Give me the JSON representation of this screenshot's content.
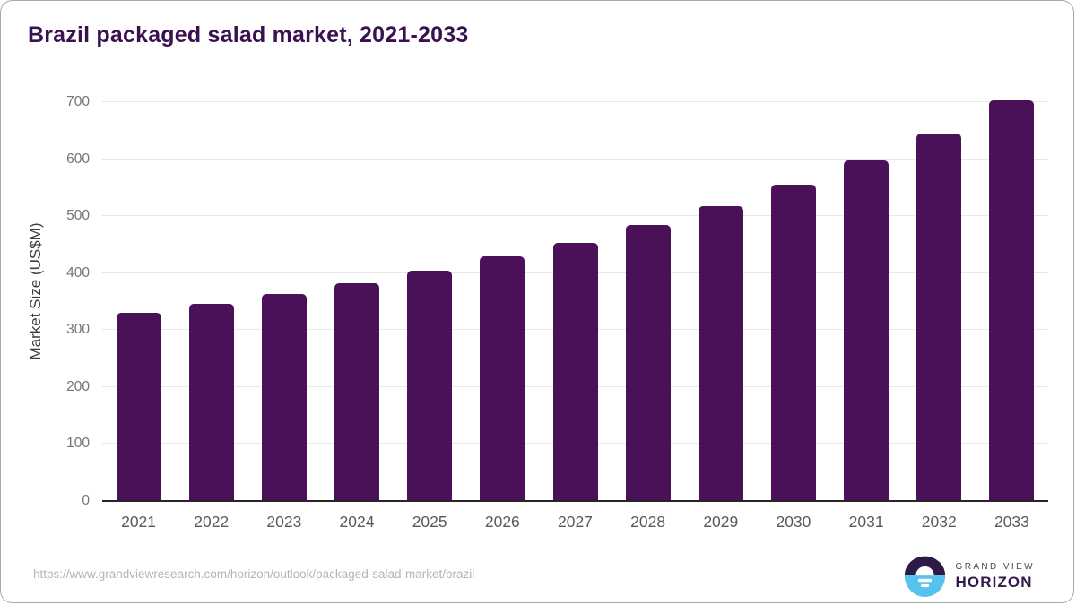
{
  "chart_data": {
    "type": "bar",
    "title": "Brazil packaged salad market, 2021-2033",
    "categories": [
      "2021",
      "2022",
      "2023",
      "2024",
      "2025",
      "2026",
      "2027",
      "2028",
      "2029",
      "2030",
      "2031",
      "2032",
      "2033"
    ],
    "values": [
      331,
      346,
      364,
      383,
      405,
      429,
      453,
      484,
      517,
      555,
      597,
      645,
      703
    ],
    "xlabel": "",
    "ylabel": "Market Size (US$M)",
    "ylim": [
      0,
      700
    ],
    "yticks": [
      0,
      100,
      200,
      300,
      400,
      500,
      600,
      700
    ],
    "grid": true,
    "legend": false,
    "bar_color": "#4a1158"
  },
  "footer": {
    "source_url": "https://www.grandviewresearch.com/horizon/outlook/packaged-salad-market/brazil",
    "logo": {
      "line1": "GRAND VIEW",
      "line2": "HORIZON"
    }
  },
  "colors": {
    "bar": "#4a1158",
    "title_text": "#3a1150",
    "axis_line": "#262626",
    "gridline": "#e7e7e7",
    "y_tick_text": "#757575",
    "x_tick_text": "#595959",
    "url_text": "#b4b4b4",
    "logo_dark": "#2e1a47",
    "logo_blue": "#57c2ee"
  }
}
